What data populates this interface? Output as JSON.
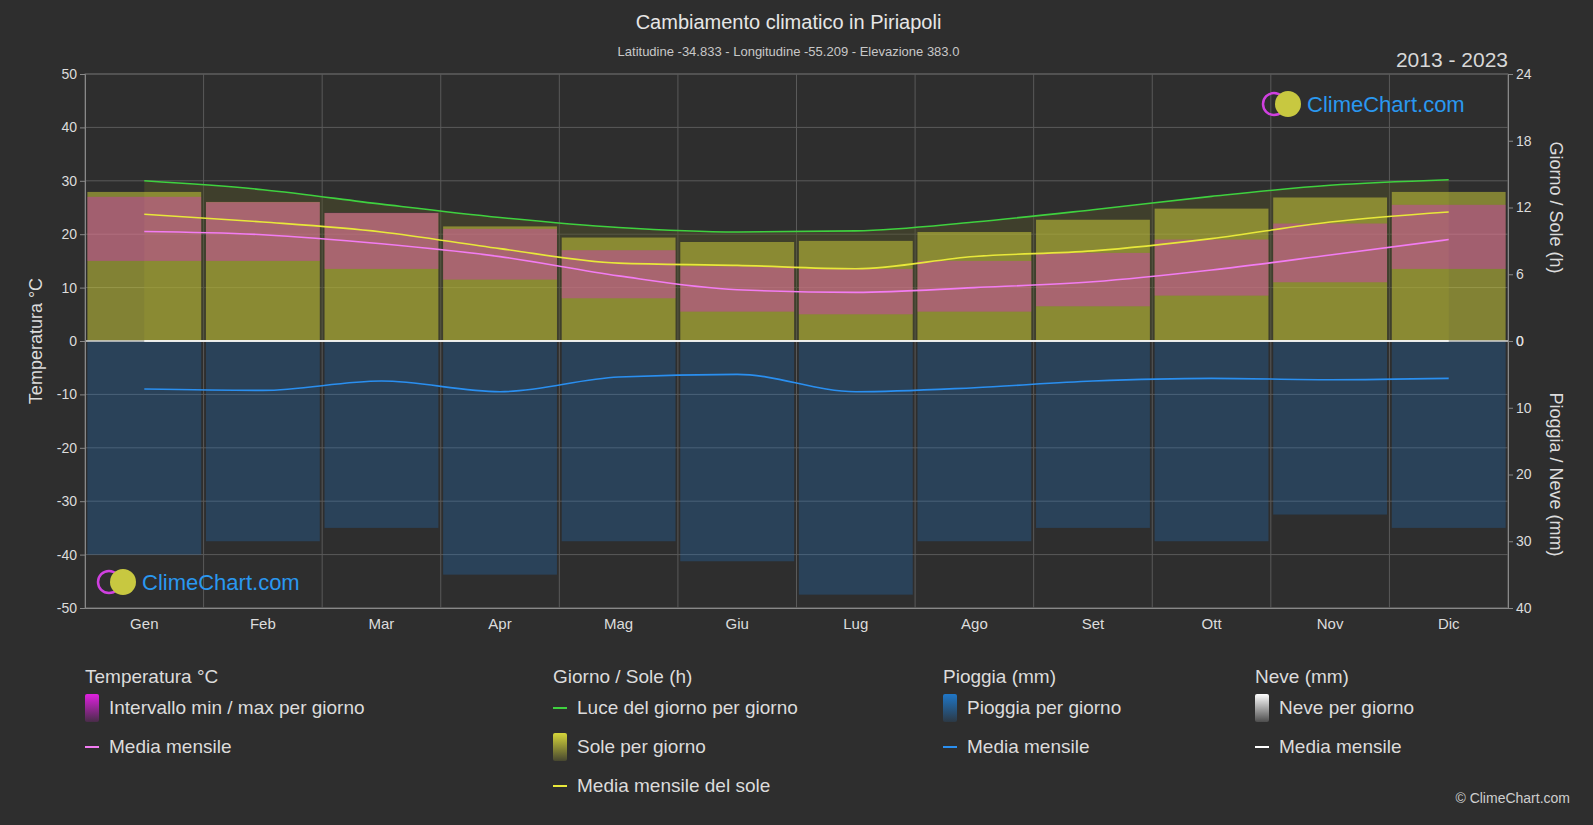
{
  "chart_data": {
    "type": "climate",
    "title": "Cambiamento climatico in Piriapoli",
    "subtitle": "Latitudine -34.833 - Longitudine -55.209 - Elevazione 383.0",
    "period": "2013 - 2023",
    "watermark": "ClimeChart.com",
    "copyright": "© ClimeChart.com",
    "y_label": "Temperatura °C",
    "y2_label": "Giorno / Sole (h)",
    "y3_label": "Pioggia / Neve (mm)",
    "categories": [
      "Gen",
      "Feb",
      "Mar",
      "Apr",
      "Mag",
      "Giu",
      "Lug",
      "Ago",
      "Set",
      "Ott",
      "Nov",
      "Dic"
    ],
    "ylim": [
      -50,
      50
    ],
    "yticks": [
      -50,
      -40,
      -30,
      -20,
      -10,
      0,
      10,
      20,
      30,
      40,
      50
    ],
    "y2lim": [
      0,
      24
    ],
    "y2ticks": [
      0,
      6,
      12,
      18,
      24
    ],
    "y3lim": [
      0,
      40
    ],
    "y3ticks": [
      0,
      10,
      20,
      30,
      40
    ],
    "grid": true,
    "legend": "bottom",
    "legend_groups": [
      {
        "title": "Temperatura °C",
        "series": [
          0,
          1
        ]
      },
      {
        "title": "Giorno / Sole (h)",
        "series": [
          2,
          3,
          4
        ]
      },
      {
        "title": "Pioggia (mm)",
        "series": [
          5,
          6
        ]
      },
      {
        "title": "Neve (mm)",
        "series": [
          7,
          8
        ]
      }
    ],
    "series": [
      {
        "name": "Intervallo min / max per giorno",
        "type": "range",
        "color": "#e020e0",
        "values": [
          27,
          26,
          24,
          21,
          17,
          14,
          13.5,
          15,
          16.5,
          19,
          22,
          25.5
        ],
        "low": [
          15,
          15,
          13.5,
          11.5,
          8,
          5.5,
          5,
          5.5,
          6.5,
          8.5,
          11,
          13.5
        ]
      },
      {
        "name": "Media mensile",
        "type": "line",
        "color": "#f27cf2",
        "values": [
          20.5,
          19.9,
          18.2,
          15.8,
          12.2,
          9.6,
          9.1,
          10.0,
          11.1,
          13.3,
          16.1,
          19.0
        ]
      },
      {
        "name": "Luce del giorno per giorno",
        "type": "line",
        "axis": "y2",
        "color": "#3fd13f",
        "values": [
          14.4,
          13.6,
          12.3,
          11.1,
          10.2,
          9.8,
          9.9,
          10.7,
          11.8,
          13.0,
          14.0,
          14.5
        ]
      },
      {
        "name": "Sole per giorno",
        "type": "bar",
        "axis": "y2",
        "color": "#d6d63a",
        "values": [
          13.4,
          12.5,
          11.5,
          10.3,
          9.3,
          8.9,
          9.0,
          9.8,
          10.9,
          11.9,
          12.9,
          13.4
        ]
      },
      {
        "name": "Media mensile del sole",
        "type": "line",
        "axis": "y2",
        "color": "#e8e83a",
        "values": [
          11.4,
          10.7,
          9.8,
          8.3,
          7.0,
          6.8,
          6.5,
          7.6,
          8.1,
          9.2,
          10.7,
          11.6
        ]
      },
      {
        "name": "Pioggia per giorno",
        "type": "bar",
        "axis": "y3",
        "color": "#1f77c8",
        "values": [
          32,
          30,
          28,
          35,
          30,
          33,
          38,
          30,
          28,
          30,
          26,
          28
        ]
      },
      {
        "name": "Media mensile",
        "type": "line",
        "axis": "y3",
        "color": "#2a8ff0",
        "values": [
          7.2,
          7.4,
          6.0,
          7.6,
          5.4,
          5.0,
          7.6,
          7.0,
          6.0,
          5.6,
          5.8,
          5.6
        ]
      },
      {
        "name": "Neve per giorno",
        "type": "bar",
        "axis": "y3",
        "color": "#ffffff",
        "values": [
          0,
          0,
          0,
          0,
          0,
          0,
          0,
          0,
          0,
          0,
          0,
          0
        ]
      },
      {
        "name": "Media mensile",
        "type": "line",
        "axis": "y3",
        "color": "#ffffff",
        "values": [
          0,
          0,
          0,
          0,
          0,
          0,
          0,
          0,
          0,
          0,
          0,
          0
        ]
      }
    ]
  }
}
